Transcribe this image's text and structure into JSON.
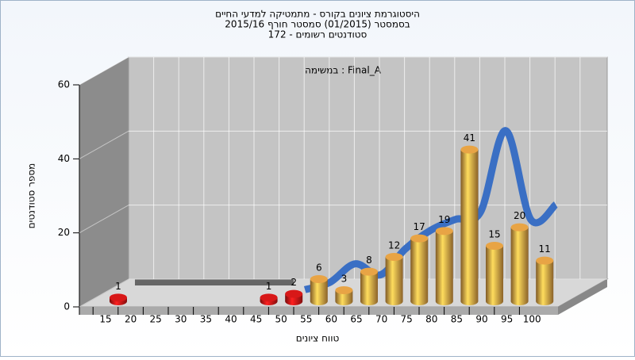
{
  "chart_data": {
    "type": "bar",
    "title": [
      "היסטוגרמת ציונים בקורס - מתמטיקה למדעי החיים",
      "בסמסטר (01/2015) סמסטר חורף 2015/16",
      "172 - סטודנטים רשומים"
    ],
    "annotation": "במשימה : Final_A",
    "x_label": "טווח ציונים",
    "y_label": "מספר סטודנטים",
    "categories": [
      "15",
      "20",
      "25",
      "30",
      "35",
      "40",
      "45",
      "50",
      "55",
      "60",
      "65",
      "70",
      "75",
      "80",
      "85",
      "90",
      "95",
      "100"
    ],
    "values": [
      1,
      0,
      0,
      0,
      0,
      0,
      1,
      2,
      6,
      3,
      8,
      12,
      17,
      19,
      41,
      15,
      20,
      11
    ],
    "colors": [
      "#d81818",
      "#d81818",
      "#d81818",
      "#d81818",
      "#d81818",
      "#d81818",
      "#d81818",
      "#d81818",
      "#e8a445",
      "#e8a445",
      "#e8a445",
      "#e8a445",
      "#e8a445",
      "#e8a445",
      "#e8a445",
      "#e8a445",
      "#e8a445",
      "#e8a445"
    ],
    "line_values": [
      null,
      null,
      null,
      null,
      null,
      null,
      null,
      1,
      3,
      8,
      5,
      12,
      17,
      20,
      22,
      44,
      20,
      24
    ],
    "line_color": "#3a6fc4",
    "ylim": [
      0,
      60
    ],
    "yticks": [
      0,
      20,
      40,
      60
    ],
    "grid": true
  }
}
